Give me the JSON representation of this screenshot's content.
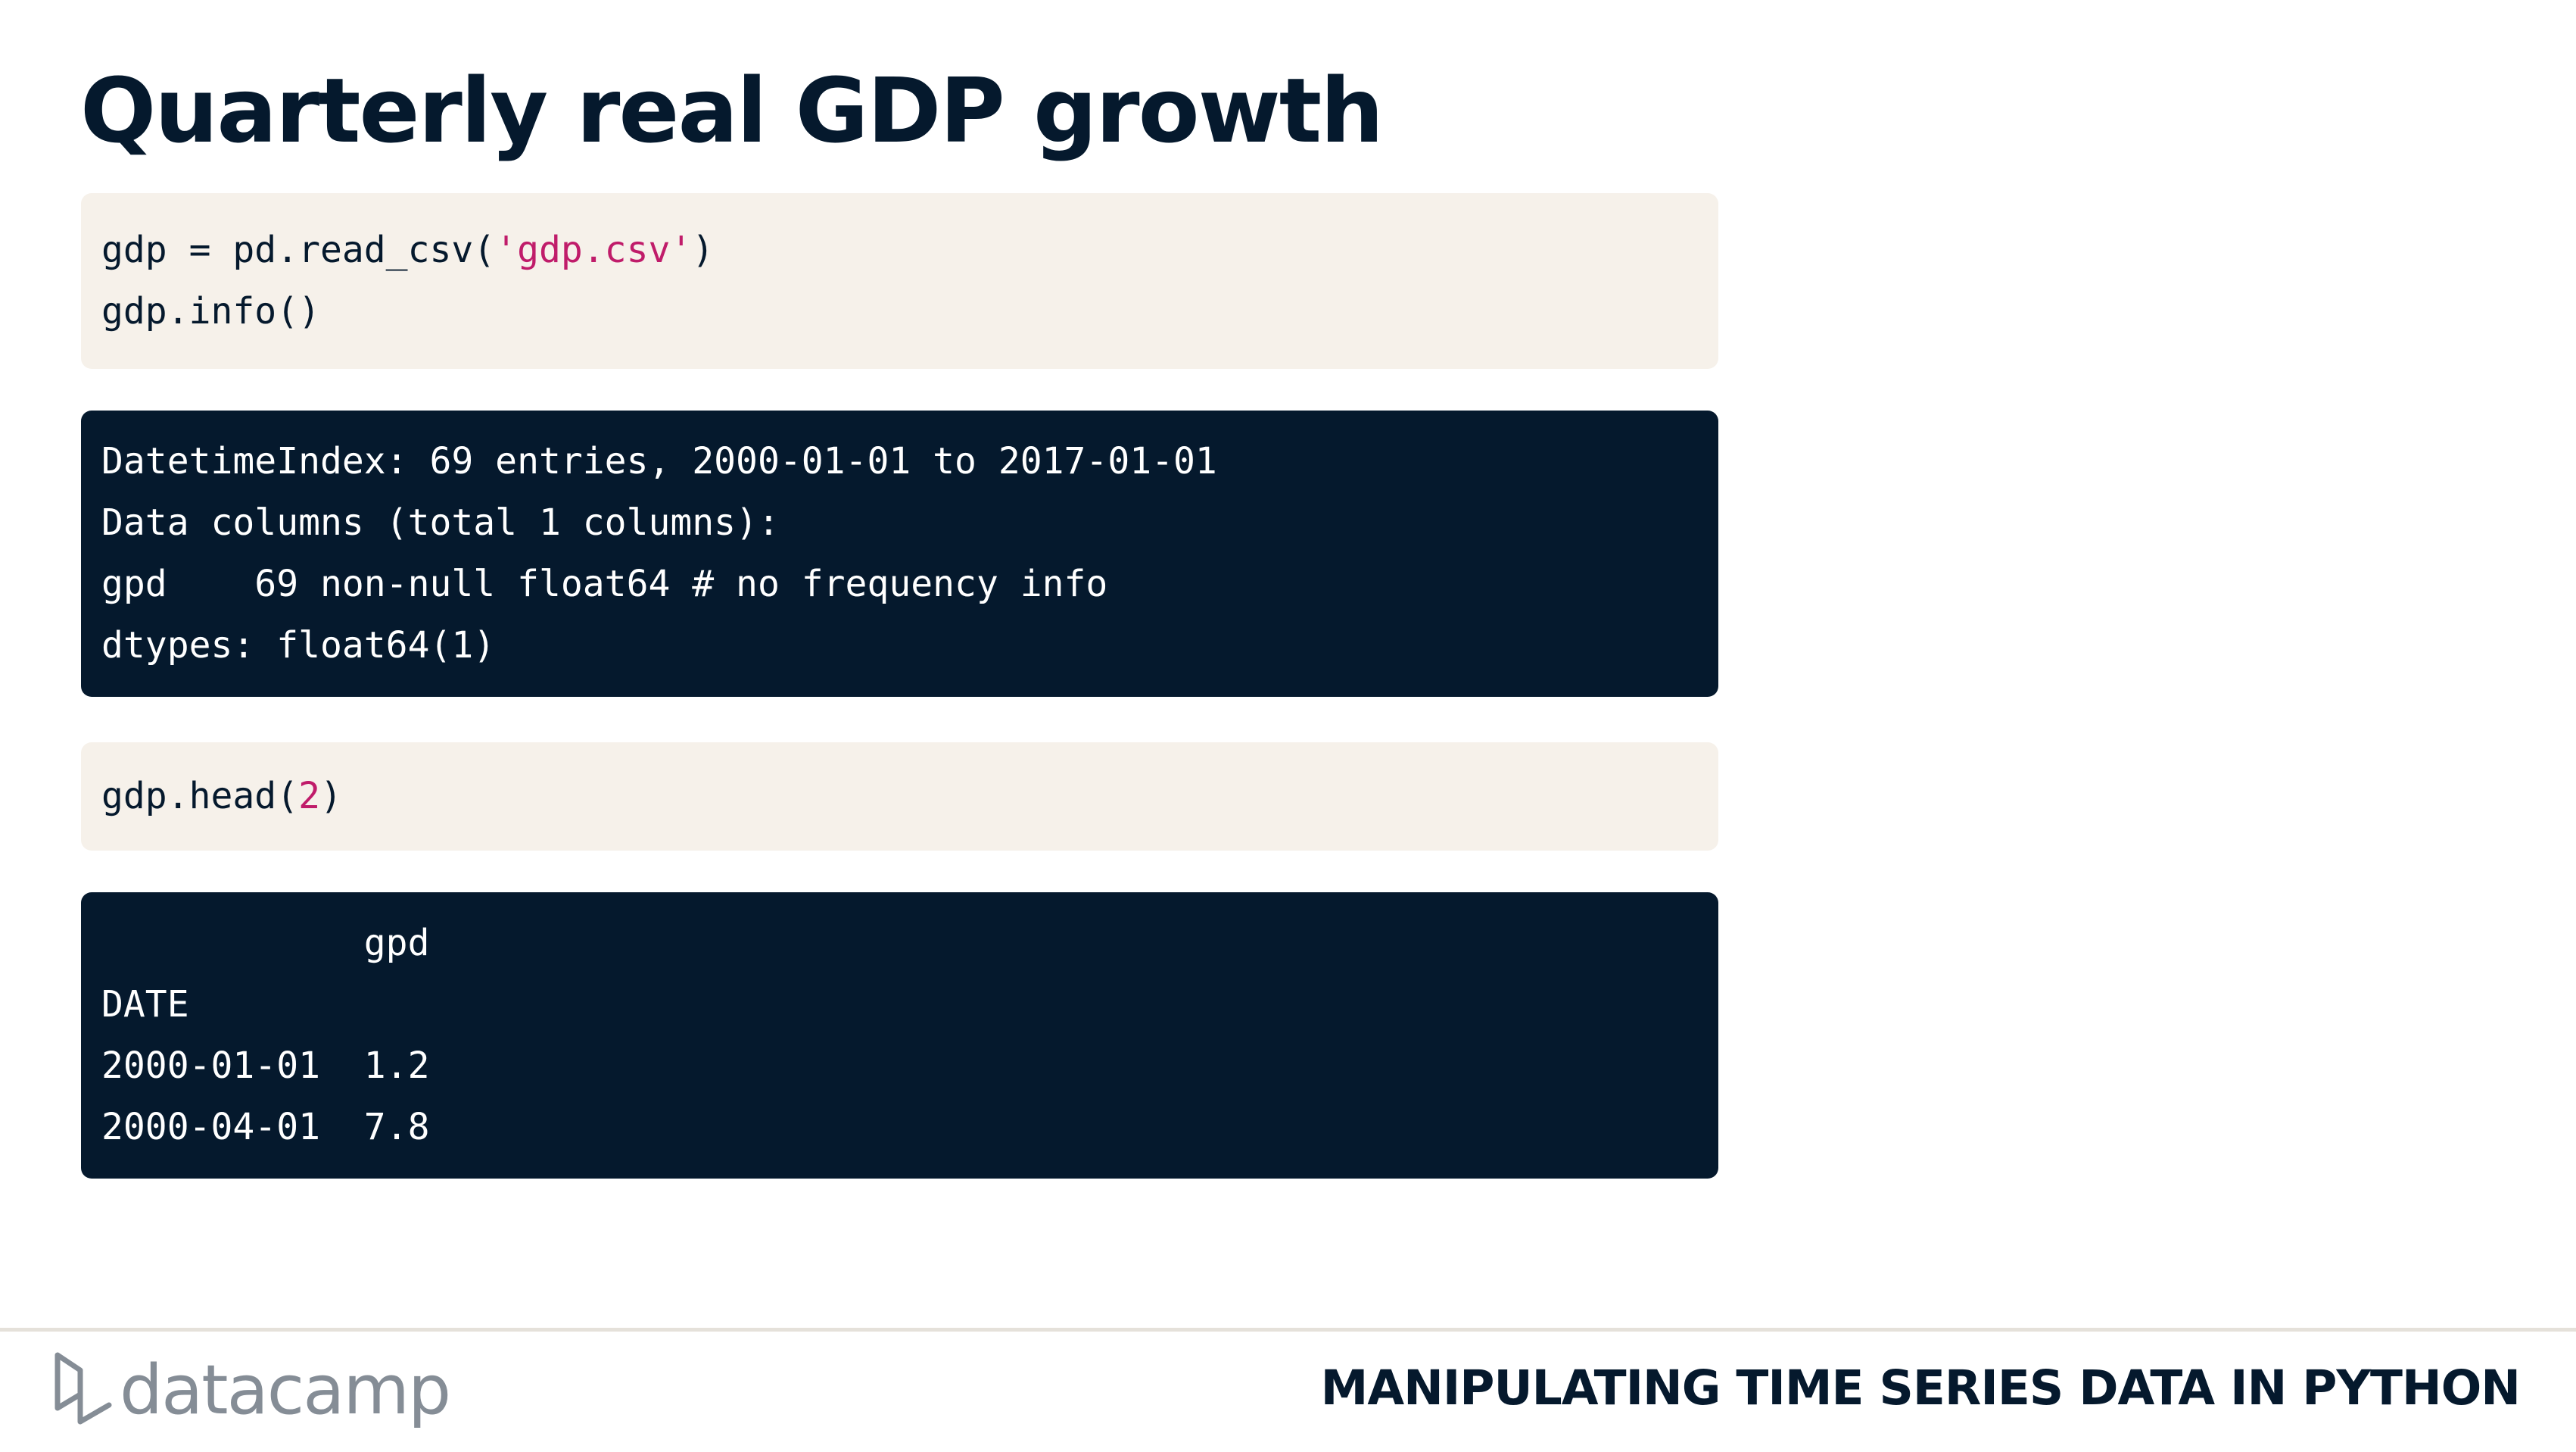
{
  "slide": {
    "title": "Quarterly real GDP growth"
  },
  "code_cells": [
    {
      "type": "input",
      "lines": [
        {
          "pre": "gdp = pd.read_csv(",
          "str": "'gdp.csv'",
          "post": ")"
        },
        {
          "pre": "gdp.info()",
          "str": "",
          "post": ""
        }
      ]
    },
    {
      "type": "output",
      "lines": [
        "DatetimeIndex: 69 entries, 2000-01-01 to 2017-01-01",
        "Data columns (total 1 columns):",
        "gpd    69 non-null float64 # no frequency info",
        "dtypes: float64(1)"
      ]
    },
    {
      "type": "input",
      "lines": [
        {
          "pre": "gdp.head(",
          "num": "2",
          "post": ")"
        }
      ]
    },
    {
      "type": "output",
      "lines": [
        "            gpd",
        "DATE",
        "2000-01-01  1.2",
        "2000-04-01  7.8"
      ]
    }
  ],
  "footer": {
    "logo_text": "datacamp",
    "course_title": "MANIPULATING TIME SERIES DATA IN PYTHON"
  },
  "colors": {
    "navy": "#05192d",
    "cream": "#f6f1ea",
    "string_accent": "#c01c6a",
    "logo_gray": "#858d96"
  }
}
